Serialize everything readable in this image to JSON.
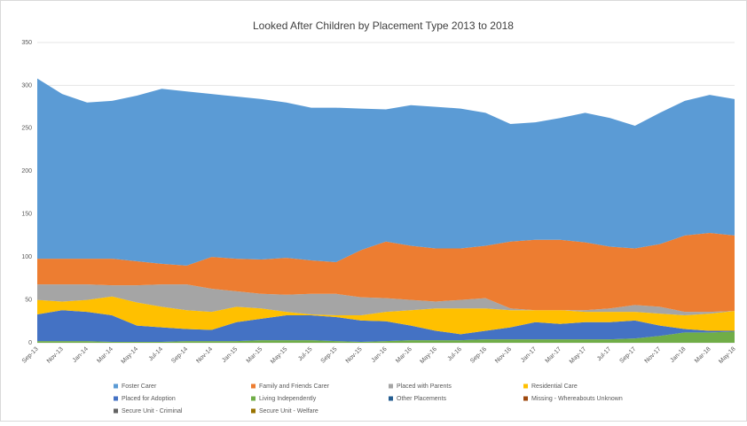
{
  "chart_data": {
    "type": "stacked_area",
    "title": "Looked After Children by Placement Type 2013 to 2018",
    "categories": [
      "Sep-13",
      "Nov-13",
      "Jan-14",
      "Mar-14",
      "May-14",
      "Jul-14",
      "Sep-14",
      "Nov-14",
      "Jan-15",
      "Mar-15",
      "May-15",
      "Jul-15",
      "Sep-15",
      "Nov-15",
      "Jan-16",
      "Mar-16",
      "May-16",
      "Jul-16",
      "Sep-16",
      "Nov-16",
      "Jan-17",
      "Mar-17",
      "May-17",
      "Jul-17",
      "Sep-17",
      "Nov-17",
      "Jan-18",
      "Mar-18",
      "May-18"
    ],
    "series": [
      {
        "name": "Foster Carer",
        "color": "#5b9bd5",
        "values": [
          210,
          192,
          182,
          184,
          193,
          204,
          203,
          190,
          189,
          187,
          181,
          178,
          180,
          165,
          154,
          164,
          165,
          163,
          155,
          137,
          137,
          142,
          151,
          150,
          143,
          153,
          157,
          161,
          159
        ]
      },
      {
        "name": "Family and Friends Carer",
        "color": "#ed7d31",
        "values": [
          30,
          30,
          30,
          31,
          28,
          24,
          22,
          37,
          38,
          40,
          43,
          39,
          37,
          55,
          66,
          63,
          62,
          60,
          61,
          78,
          82,
          82,
          79,
          72,
          66,
          73,
          89,
          92,
          88
        ]
      },
      {
        "name": "Placed with Parents",
        "color": "#a5a5a5",
        "values": [
          18,
          20,
          18,
          13,
          20,
          26,
          30,
          27,
          18,
          17,
          20,
          24,
          25,
          21,
          16,
          12,
          8,
          10,
          12,
          2,
          0,
          0,
          2,
          4,
          8,
          8,
          4,
          2,
          0
        ]
      },
      {
        "name": "Residential Care",
        "color": "#ffc000",
        "values": [
          17,
          10,
          14,
          22,
          27,
          24,
          22,
          21,
          18,
          12,
          4,
          1,
          2,
          6,
          11,
          18,
          26,
          30,
          26,
          20,
          14,
          16,
          12,
          12,
          10,
          14,
          16,
          20,
          23
        ]
      },
      {
        "name": "Placed for Adoption",
        "color": "#4472c4",
        "values": [
          31,
          36,
          34,
          31,
          19,
          17,
          14,
          13,
          22,
          25,
          29,
          29,
          28,
          25,
          23,
          17,
          11,
          7,
          10,
          14,
          20,
          18,
          20,
          20,
          21,
          12,
          4,
          2,
          1
        ]
      },
      {
        "name": "Living Independently",
        "color": "#70ad47",
        "values": [
          2,
          2,
          2,
          1,
          1,
          1,
          2,
          2,
          2,
          3,
          3,
          3,
          2,
          1,
          2,
          3,
          3,
          3,
          4,
          4,
          4,
          4,
          4,
          4,
          5,
          8,
          12,
          12,
          13
        ]
      },
      {
        "name": "Other Placements",
        "color": "#255e91",
        "values": [
          0,
          0,
          0,
          0,
          0,
          0,
          0,
          0,
          0,
          0,
          0,
          0,
          0,
          0,
          0,
          0,
          0,
          0,
          0,
          0,
          0,
          0,
          0,
          0,
          0,
          0,
          0,
          0,
          0
        ]
      },
      {
        "name": "Missing - Whereabouts Unknown",
        "color": "#9e480e",
        "values": [
          0,
          0,
          0,
          0,
          0,
          0,
          0,
          0,
          0,
          0,
          0,
          0,
          0,
          0,
          0,
          0,
          0,
          0,
          0,
          0,
          0,
          0,
          0,
          0,
          0,
          0,
          0,
          0,
          0
        ]
      },
      {
        "name": "Secure Unit - Criminal",
        "color": "#636363",
        "values": [
          0,
          0,
          0,
          0,
          0,
          0,
          0,
          0,
          0,
          0,
          0,
          0,
          0,
          0,
          0,
          0,
          0,
          0,
          0,
          0,
          0,
          0,
          0,
          0,
          0,
          0,
          0,
          0,
          0
        ]
      },
      {
        "name": "Secure Unit - Welfare",
        "color": "#997300",
        "values": [
          0,
          0,
          0,
          0,
          0,
          0,
          0,
          0,
          0,
          0,
          0,
          0,
          0,
          0,
          0,
          0,
          0,
          0,
          0,
          0,
          0,
          0,
          0,
          0,
          0,
          0,
          0,
          0,
          0
        ]
      }
    ],
    "ylim": [
      0,
      350
    ],
    "yticks": [
      0,
      50,
      100,
      150,
      200,
      250,
      300,
      350
    ],
    "grid": true
  }
}
